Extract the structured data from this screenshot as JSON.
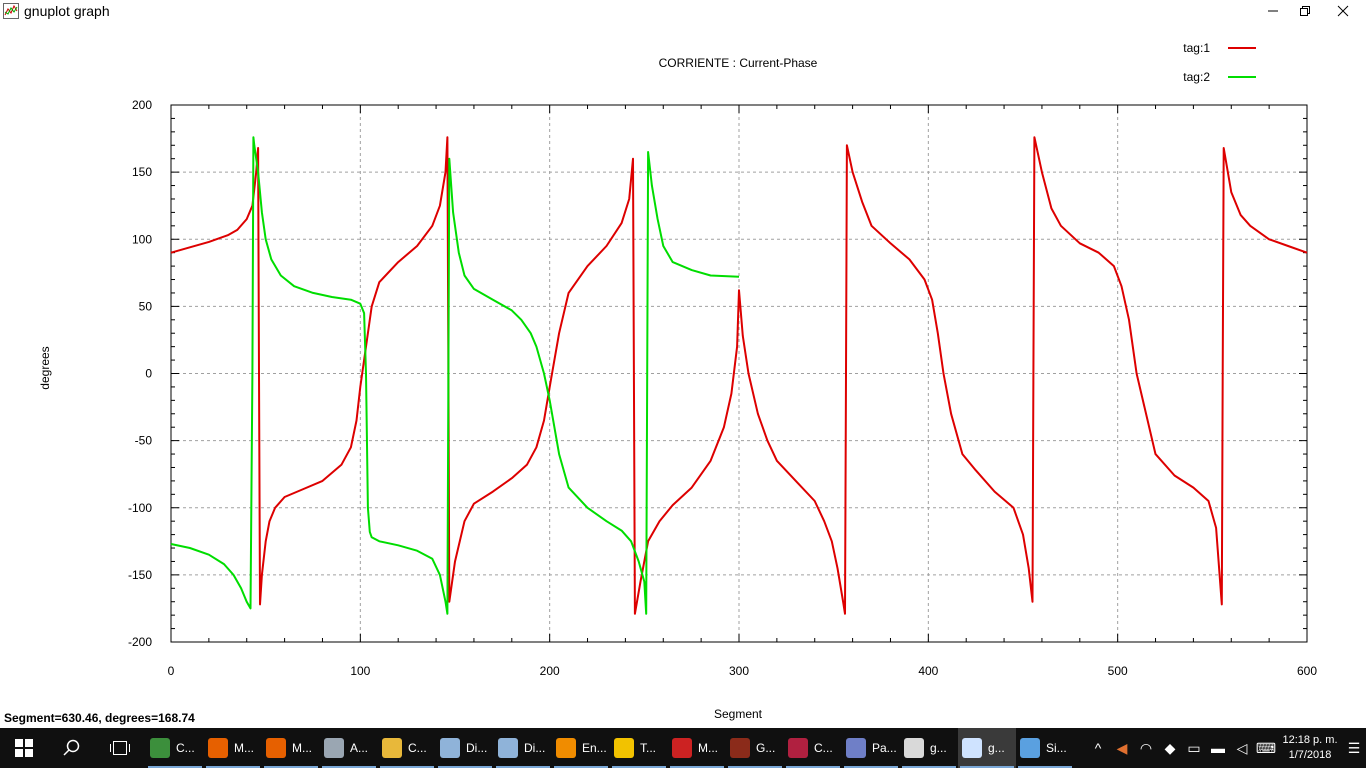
{
  "window": {
    "title": "gnuplot graph"
  },
  "status_text": "Segment=630.46, degrees=168.74",
  "colors": {
    "tag1": "#dd0000",
    "tag2": "#00dd00"
  },
  "chart_data": {
    "type": "line",
    "title": "CORRIENTE : Current-Phase",
    "xlabel": "Segment",
    "ylabel": "degrees",
    "xlim": [
      0,
      600
    ],
    "ylim": [
      -200,
      200
    ],
    "xticks": [
      0,
      100,
      200,
      300,
      400,
      500,
      600
    ],
    "yticks": [
      -200,
      -150,
      -100,
      -50,
      0,
      50,
      100,
      150,
      200
    ],
    "grid": true,
    "legend_position": "top-right",
    "series": [
      {
        "name": "tag:1",
        "color": "#dd0000",
        "x": [
          0,
          10,
          20,
          30,
          35,
          40,
          43,
          45,
          46,
          46.5,
          47,
          48,
          50,
          52,
          55,
          60,
          70,
          80,
          90,
          95,
          98,
          100,
          103,
          106,
          110,
          120,
          130,
          138,
          142,
          145,
          146,
          146.5,
          147,
          150,
          155,
          160,
          170,
          180,
          188,
          193,
          197,
          200,
          205,
          210,
          220,
          230,
          238,
          242,
          244,
          244.5,
          245,
          248,
          252,
          258,
          265,
          275,
          285,
          292,
          296,
          299,
          300,
          301,
          302,
          305,
          310,
          315,
          320,
          330,
          340,
          345,
          349,
          352,
          355,
          356,
          356.5,
          357,
          360,
          365,
          370,
          380,
          390,
          398,
          402,
          405,
          408,
          412,
          418,
          425,
          435,
          445,
          450,
          453,
          455,
          455.5,
          456,
          460,
          465,
          470,
          480,
          490,
          498,
          502,
          506,
          510,
          520,
          530,
          540,
          548,
          552,
          555,
          555.5,
          556,
          560,
          565,
          570,
          580,
          590,
          600
        ],
        "y": [
          90,
          94,
          98,
          103,
          107,
          115,
          125,
          150,
          168,
          0,
          -172,
          -150,
          -125,
          -110,
          -100,
          -92,
          -86,
          -80,
          -68,
          -55,
          -35,
          -10,
          20,
          50,
          68,
          83,
          95,
          110,
          125,
          150,
          176,
          0,
          -170,
          -140,
          -110,
          -97,
          -88,
          -78,
          -68,
          -55,
          -35,
          -10,
          30,
          60,
          80,
          95,
          112,
          130,
          160,
          0,
          -179,
          -155,
          -125,
          -110,
          -98,
          -85,
          -65,
          -40,
          -15,
          20,
          62,
          45,
          28,
          0,
          -30,
          -50,
          -65,
          -80,
          -95,
          -110,
          -125,
          -145,
          -170,
          -179,
          0,
          170,
          150,
          128,
          110,
          97,
          85,
          70,
          55,
          30,
          0,
          -30,
          -60,
          -72,
          -88,
          -100,
          -120,
          -145,
          -170,
          0,
          176,
          150,
          123,
          110,
          97,
          90,
          80,
          65,
          40,
          0,
          -60,
          -76,
          -85,
          -95,
          -115,
          -172,
          0,
          168,
          135,
          118,
          110,
          100,
          95,
          90
        ]
      },
      {
        "name": "tag:2",
        "color": "#00dd00",
        "x": [
          0,
          10,
          20,
          28,
          33,
          37,
          40,
          42,
          43,
          43.5,
          44,
          46,
          48,
          50,
          53,
          58,
          65,
          75,
          85,
          95,
          100,
          102,
          103,
          104,
          105,
          106,
          110,
          120,
          130,
          138,
          142,
          145,
          146,
          146.5,
          147,
          149,
          152,
          155,
          160,
          170,
          180,
          185,
          190,
          193,
          197,
          200,
          205,
          210,
          220,
          230,
          238,
          243,
          247,
          250,
          251,
          251.5,
          252,
          254,
          257,
          260,
          265,
          275,
          285,
          300
        ],
        "y": [
          -127,
          -130,
          -135,
          -142,
          -150,
          -160,
          -170,
          -175,
          0,
          176,
          170,
          150,
          120,
          100,
          85,
          73,
          65,
          60,
          57,
          55,
          52,
          45,
          0,
          -100,
          -118,
          -122,
          -125,
          -128,
          -132,
          -138,
          -150,
          -170,
          -179,
          0,
          160,
          120,
          90,
          73,
          63,
          55,
          47,
          40,
          30,
          20,
          0,
          -20,
          -60,
          -85,
          -100,
          -110,
          -117,
          -125,
          -140,
          -155,
          -179,
          0,
          165,
          140,
          115,
          95,
          83,
          77,
          73,
          72
        ]
      }
    ]
  },
  "taskbar": {
    "apps": [
      {
        "label": "C...",
        "icon": "app-c-icon",
        "color": "#3c8f3c"
      },
      {
        "label": "M...",
        "icon": "firefox-icon",
        "color": "#e66000"
      },
      {
        "label": "M...",
        "icon": "firefox-icon",
        "color": "#e66000"
      },
      {
        "label": "A...",
        "icon": "app-a-icon",
        "color": "#9aa6b2"
      },
      {
        "label": "C...",
        "icon": "folder-icon",
        "color": "#e8b83a"
      },
      {
        "label": "Di...",
        "icon": "drive-icon",
        "color": "#8fb3d9"
      },
      {
        "label": "Di...",
        "icon": "drive-icon",
        "color": "#8fb3d9"
      },
      {
        "label": "En...",
        "icon": "app-en-icon",
        "color": "#f08c00"
      },
      {
        "label": "T...",
        "icon": "pdf-icon",
        "color": "#f2c200"
      },
      {
        "label": "M...",
        "icon": "antenna-icon",
        "color": "#cc2222"
      },
      {
        "label": "G...",
        "icon": "app-g-icon",
        "color": "#8b2b1a"
      },
      {
        "label": "C...",
        "icon": "app-c2-icon",
        "color": "#b02040"
      },
      {
        "label": "Pa...",
        "icon": "app-pa-icon",
        "color": "#6f7fc7"
      },
      {
        "label": "g...",
        "icon": "plot-icon",
        "color": "#d9d9d9"
      },
      {
        "label": "g...",
        "icon": "gnuplot-icon",
        "color": "#cfe3ff"
      },
      {
        "label": "Si...",
        "icon": "paint-icon",
        "color": "#5aa0e0"
      }
    ],
    "clock_time": "12:18 p. m.",
    "clock_date": "1/7/2018"
  }
}
